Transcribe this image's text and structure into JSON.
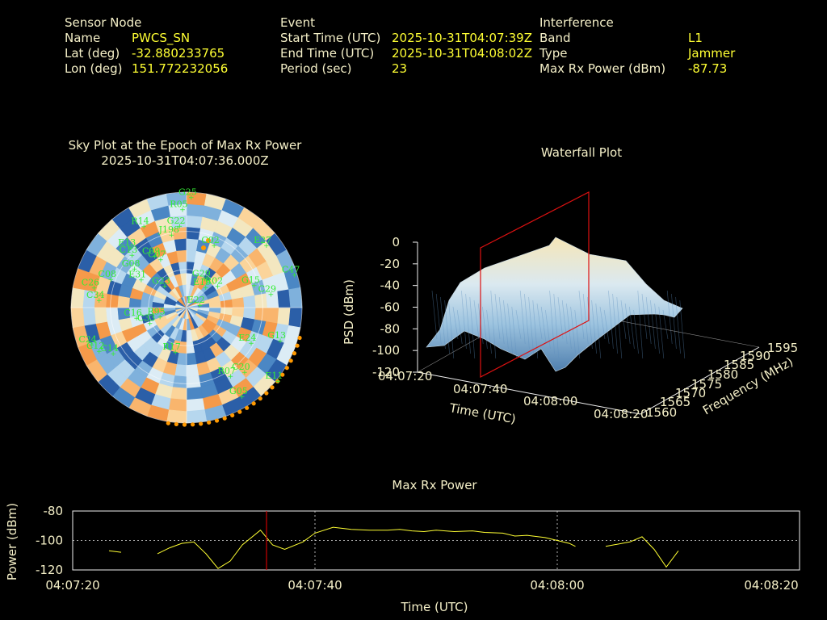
{
  "info": {
    "sensor": {
      "heading": "Sensor Node",
      "name_label": "Name",
      "name": "PWCS_SN",
      "lat_label": "Lat (deg)",
      "lat": "-32.880233765",
      "lon_label": "Lon (deg)",
      "lon": "151.772232056"
    },
    "event": {
      "heading": "Event",
      "start_label": "Start Time (UTC)",
      "start": "2025-10-31T04:07:39Z",
      "end_label": "End Time (UTC)",
      "end": "2025-10-31T04:08:02Z",
      "period_label": "Period (sec)",
      "period": "23"
    },
    "interference": {
      "heading": "Interference",
      "band_label": "Band",
      "band": "L1",
      "type_label": "Type",
      "type": "Jammer",
      "power_label": "Max Rx Power (dBm)",
      "power": "-87.73"
    }
  },
  "sky": {
    "title": "Sky Plot at the Epoch of Max Rx Power",
    "epoch": "2025-10-31T04:07:36.000Z"
  },
  "colors": {
    "text": "#f5f0c8",
    "value": "#ffff33",
    "sat": "#33ee33",
    "marker": "#ff9900",
    "line": "#ffff33",
    "cursor": "#cc0000"
  },
  "chart_data": [
    {
      "type": "polar",
      "satellites": [
        "G25",
        "R14",
        "R05",
        "E13",
        "J198",
        "G22",
        "C13",
        "G08",
        "C09",
        "C07",
        "C02",
        "C26",
        "C34",
        "C08",
        "E27",
        "C47",
        "G29",
        "R02",
        "G23",
        "E19",
        "G15",
        "C29",
        "E31",
        "R95",
        "E22",
        "C33",
        "C16",
        "E24",
        "G13",
        "R17",
        "C24",
        "R07",
        "C20",
        "C12",
        "C14",
        "G05",
        "E11"
      ]
    },
    {
      "type": "surface",
      "title": "Waterfall Plot",
      "zlabel": "PSD (dBm)",
      "z_ticks": [
        "0",
        "-20",
        "-40",
        "-60",
        "-80",
        "-100",
        "-120"
      ],
      "xlabel": "Time (UTC)",
      "x_ticks": [
        "04:07:20",
        "04:07:40",
        "04:08:00",
        "04:08:20"
      ],
      "ylabel": "Frequency (MHz)",
      "y_ticks": [
        "1560",
        "1565",
        "1570",
        "1575",
        "1580",
        "1585",
        "1590",
        "1595"
      ]
    },
    {
      "type": "line",
      "title": "Max Rx Power",
      "xlabel": "Time (UTC)",
      "ylabel": "Power (dBm)",
      "x_ticks": [
        "04:07:20",
        "04:07:40",
        "04:08:00",
        "04:08:20"
      ],
      "y_ticks": [
        "-80",
        "-100",
        "-120"
      ],
      "ylim": [
        -120,
        -80
      ],
      "xlim": [
        0,
        60
      ],
      "cursor_x": 16,
      "segments": [
        [
          [
            3.0,
            -107.0
          ],
          [
            4.0,
            -108.0
          ]
        ],
        [
          [
            7.0,
            -109.0
          ],
          [
            8.0,
            -105.0
          ],
          [
            9.0,
            -102.0
          ],
          [
            10.0,
            -101.0
          ],
          [
            11.0,
            -109.0
          ],
          [
            12.0,
            -119.0
          ],
          [
            13.0,
            -114.0
          ],
          [
            14.0,
            -103.0
          ],
          [
            15.5,
            -93.0
          ],
          [
            16.5,
            -103.0
          ],
          [
            17.5,
            -106.0
          ],
          [
            19.0,
            -101.0
          ],
          [
            20.0,
            -95.0
          ],
          [
            21.5,
            -91.0
          ],
          [
            23.0,
            -92.5
          ],
          [
            24.5,
            -93.0
          ],
          [
            26.0,
            -93.0
          ],
          [
            27.0,
            -92.5
          ],
          [
            28.0,
            -93.5
          ],
          [
            29.0,
            -94.0
          ],
          [
            30.0,
            -93.0
          ],
          [
            31.5,
            -94.0
          ],
          [
            33.0,
            -93.5
          ],
          [
            34.0,
            -94.5
          ],
          [
            35.5,
            -95.0
          ],
          [
            36.5,
            -97.0
          ],
          [
            37.5,
            -96.5
          ],
          [
            39.0,
            -98.0
          ],
          [
            40.0,
            -100.0
          ],
          [
            41.0,
            -102.0
          ],
          [
            41.5,
            -104.0
          ]
        ],
        [
          [
            44.0,
            -104.0
          ],
          [
            46.0,
            -101.0
          ],
          [
            47.0,
            -97.5
          ],
          [
            48.0,
            -106.0
          ],
          [
            49.0,
            -118.0
          ],
          [
            50.0,
            -107.0
          ]
        ]
      ]
    }
  ]
}
